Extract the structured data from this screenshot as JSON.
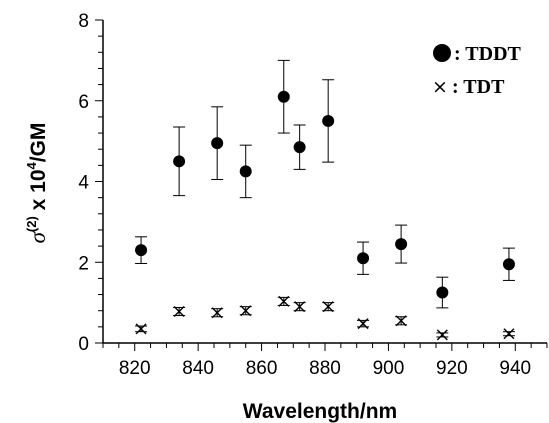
{
  "chart_data": {
    "type": "scatter",
    "xlabel": "Wavelength/nm",
    "ylabel_prefix": "σ",
    "ylabel_sup": "(2)",
    "ylabel_mid": " x 10",
    "ylabel_sup2": "4",
    "ylabel_suffix": "/GM",
    "xlim": [
      810,
      950
    ],
    "ylim": [
      0,
      8
    ],
    "x_ticks": [
      820,
      840,
      860,
      880,
      900,
      920,
      940
    ],
    "y_ticks": [
      0,
      2,
      4,
      6,
      8
    ],
    "grid": false,
    "legend_position": "top-right",
    "series": [
      {
        "name": ": TDDT",
        "marker": "filled-circle",
        "x": [
          822,
          834,
          846,
          855,
          867,
          872,
          881,
          892,
          904,
          917,
          938
        ],
        "y": [
          2.3,
          4.5,
          4.95,
          4.25,
          6.1,
          4.85,
          5.5,
          2.1,
          2.45,
          1.25,
          1.95
        ],
        "err": [
          0.33,
          0.85,
          0.9,
          0.65,
          0.9,
          0.55,
          1.02,
          0.4,
          0.47,
          0.38,
          0.4
        ]
      },
      {
        "name": ": TDT",
        "marker": "x",
        "x": [
          822,
          834,
          846,
          855,
          867,
          872,
          881,
          892,
          904,
          917,
          938
        ],
        "y": [
          0.35,
          0.78,
          0.75,
          0.8,
          1.03,
          0.9,
          0.9,
          0.48,
          0.55,
          0.2,
          0.23
        ],
        "err": [
          0.07,
          0.1,
          0.1,
          0.1,
          0.1,
          0.1,
          0.1,
          0.08,
          0.1,
          0.05,
          0.05
        ]
      }
    ]
  }
}
